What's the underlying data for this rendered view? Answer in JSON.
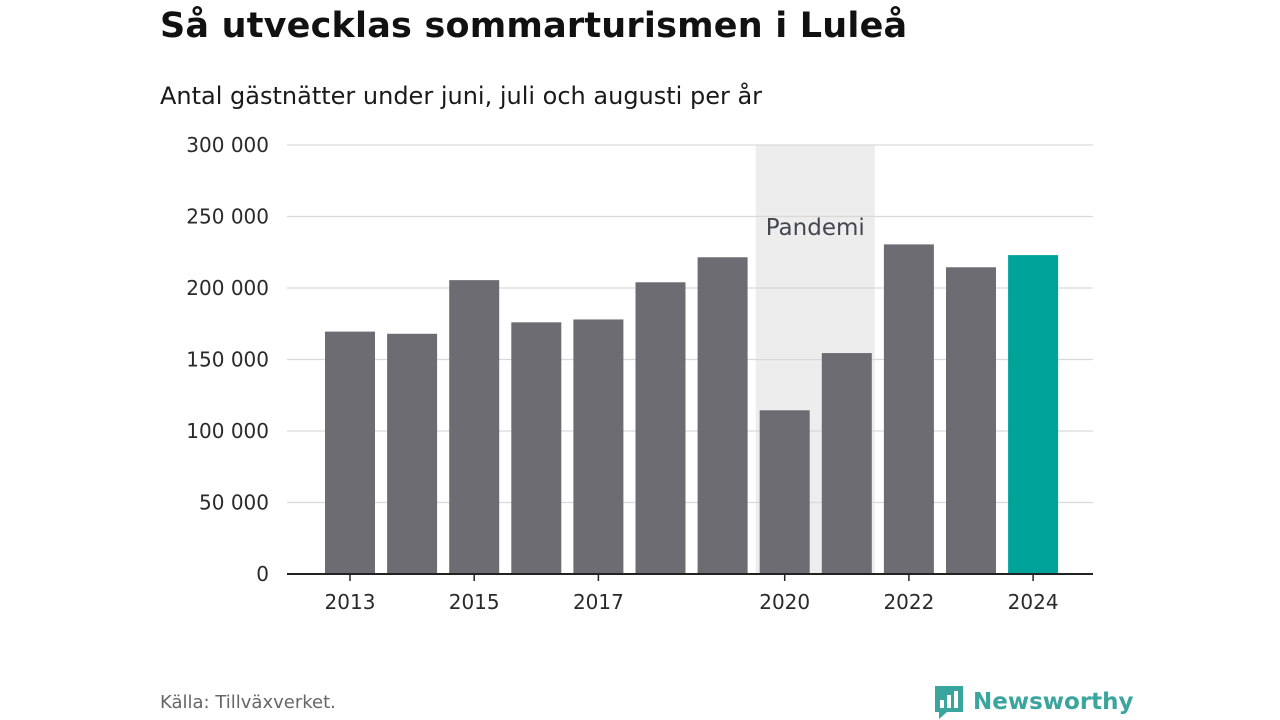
{
  "title": "Så utvecklas sommarturismen i Luleå",
  "subtitle": "Antal gästnätter under juni, juli och augusti per år",
  "source": "Källa: Tillväxverket.",
  "brand": {
    "name": "Newsworthy",
    "icon": "newsworthy-logo-icon",
    "color": "#3aa59c"
  },
  "chart_data": {
    "type": "bar",
    "categories": [
      "2013",
      "2014",
      "2015",
      "2016",
      "2017",
      "2018",
      "2019",
      "2020",
      "2021",
      "2022",
      "2023",
      "2024"
    ],
    "values": [
      169500,
      168000,
      205500,
      176000,
      178000,
      204000,
      221500,
      114500,
      154500,
      230500,
      214500,
      223000
    ],
    "x_tick_labels": [
      "2013",
      "2015",
      "2017",
      "2020",
      "2022",
      "2024"
    ],
    "y_ticks": [
      0,
      50000,
      100000,
      150000,
      200000,
      250000,
      300000
    ],
    "y_tick_labels": [
      "0",
      "50 000",
      "100 000",
      "150 000",
      "200 000",
      "250 000",
      "300 000"
    ],
    "ylim": [
      0,
      300000
    ],
    "grid": true,
    "colors": {
      "bar": "#6d6c72",
      "highlight": "#00a39a",
      "shade": "#ededed",
      "grid": "#d9d9d9",
      "axis": "#222222"
    },
    "highlight_category": "2024",
    "annotation": {
      "label": "Pandemi",
      "from": "2020",
      "to": "2021"
    }
  }
}
